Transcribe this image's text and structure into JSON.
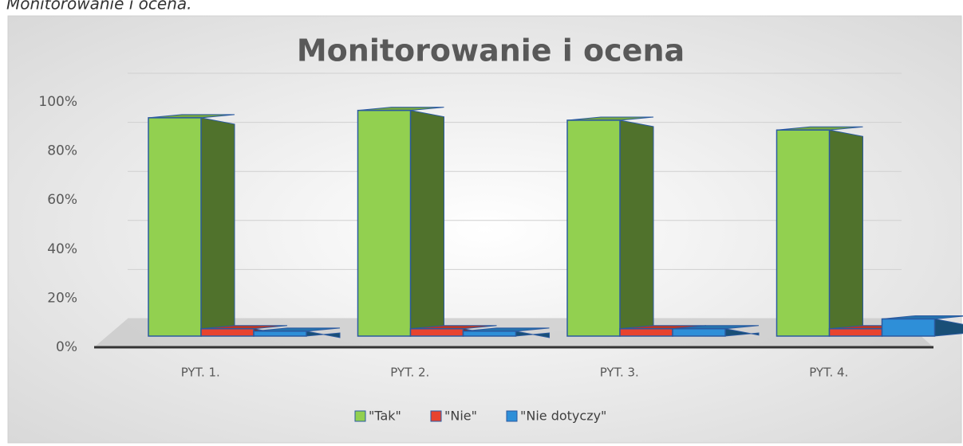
{
  "caption": "Monitorowanie i ocena.",
  "chart_data": {
    "type": "bar3d",
    "title": "Monitorowanie i ocena",
    "categories": [
      "PYT. 1.",
      "PYT. 2.",
      "PYT. 3.",
      "PYT. 4."
    ],
    "series": [
      {
        "name": "\"Tak\"",
        "color": "#92d050",
        "values": [
          89,
          92,
          88,
          84
        ]
      },
      {
        "name": "\"Nie\"",
        "color": "#e8432f",
        "values": [
          3,
          3,
          3,
          3
        ]
      },
      {
        "name": "\"Nie dotyczy\"",
        "color": "#2e8fd8",
        "values": [
          2,
          2,
          3,
          7
        ]
      }
    ],
    "ylim": [
      0,
      100
    ],
    "yticks": [
      {
        "value": 0,
        "label": "0%"
      },
      {
        "value": 20,
        "label": "20%"
      },
      {
        "value": 40,
        "label": "40%"
      },
      {
        "value": 60,
        "label": "60%"
      },
      {
        "value": 80,
        "label": "80%"
      },
      {
        "value": 100,
        "label": "100%"
      }
    ],
    "grid": true,
    "legend": "bottom"
  }
}
